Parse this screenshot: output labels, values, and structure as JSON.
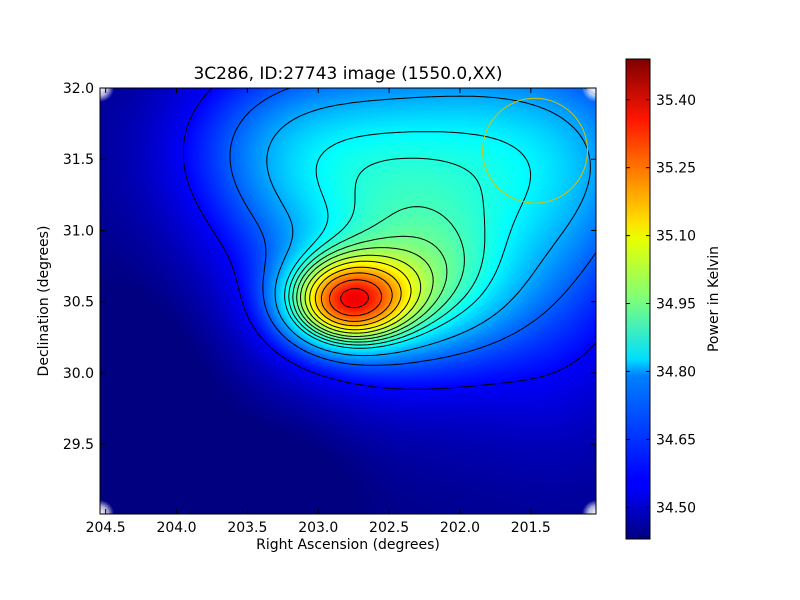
{
  "chart_data": {
    "type": "heatmap",
    "title": "3C286, ID:27743 image (1550.0,XX)",
    "xlabel": "Right Ascension (degrees)",
    "ylabel": "Declination (degrees)",
    "colorbar_label": "Power in Kelvin",
    "colormap": "jet",
    "x_axis_inverted": true,
    "xlim": [
      204.54,
      201.04
    ],
    "ylim": [
      29.01,
      32.0
    ],
    "x_ticks": [
      204.5,
      204.0,
      203.5,
      203.0,
      202.5,
      202.0,
      201.5
    ],
    "x_tick_labels": [
      "204.5",
      "204.0",
      "203.5",
      "203.0",
      "202.5",
      "202.0",
      "201.5"
    ],
    "y_ticks": [
      29.5,
      30.0,
      30.5,
      31.0,
      31.5,
      32.0
    ],
    "y_tick_labels": [
      "29.5",
      "30.0",
      "30.5",
      "31.0",
      "31.5",
      "32.0"
    ],
    "colorbar_range": [
      34.43,
      35.49
    ],
    "colorbar_ticks": [
      34.5,
      34.65,
      34.8,
      34.95,
      35.1,
      35.25,
      35.4
    ],
    "colorbar_tick_labels": [
      "34.50",
      "34.65",
      "34.80",
      "34.95",
      "35.10",
      "35.25",
      "35.40"
    ],
    "contour_levels": [
      34.56,
      34.66,
      34.74,
      34.82,
      34.86,
      34.9,
      34.94,
      34.98,
      35.03,
      35.08,
      35.14,
      35.2,
      35.27,
      35.34,
      35.41
    ],
    "peak": {
      "ra": 202.8,
      "dec": 30.5,
      "value": 35.48
    },
    "beam_circle": {
      "ra": 201.47,
      "dec": 31.56,
      "radius_deg": 0.37,
      "color": "#d4c200"
    },
    "grid": false
  }
}
